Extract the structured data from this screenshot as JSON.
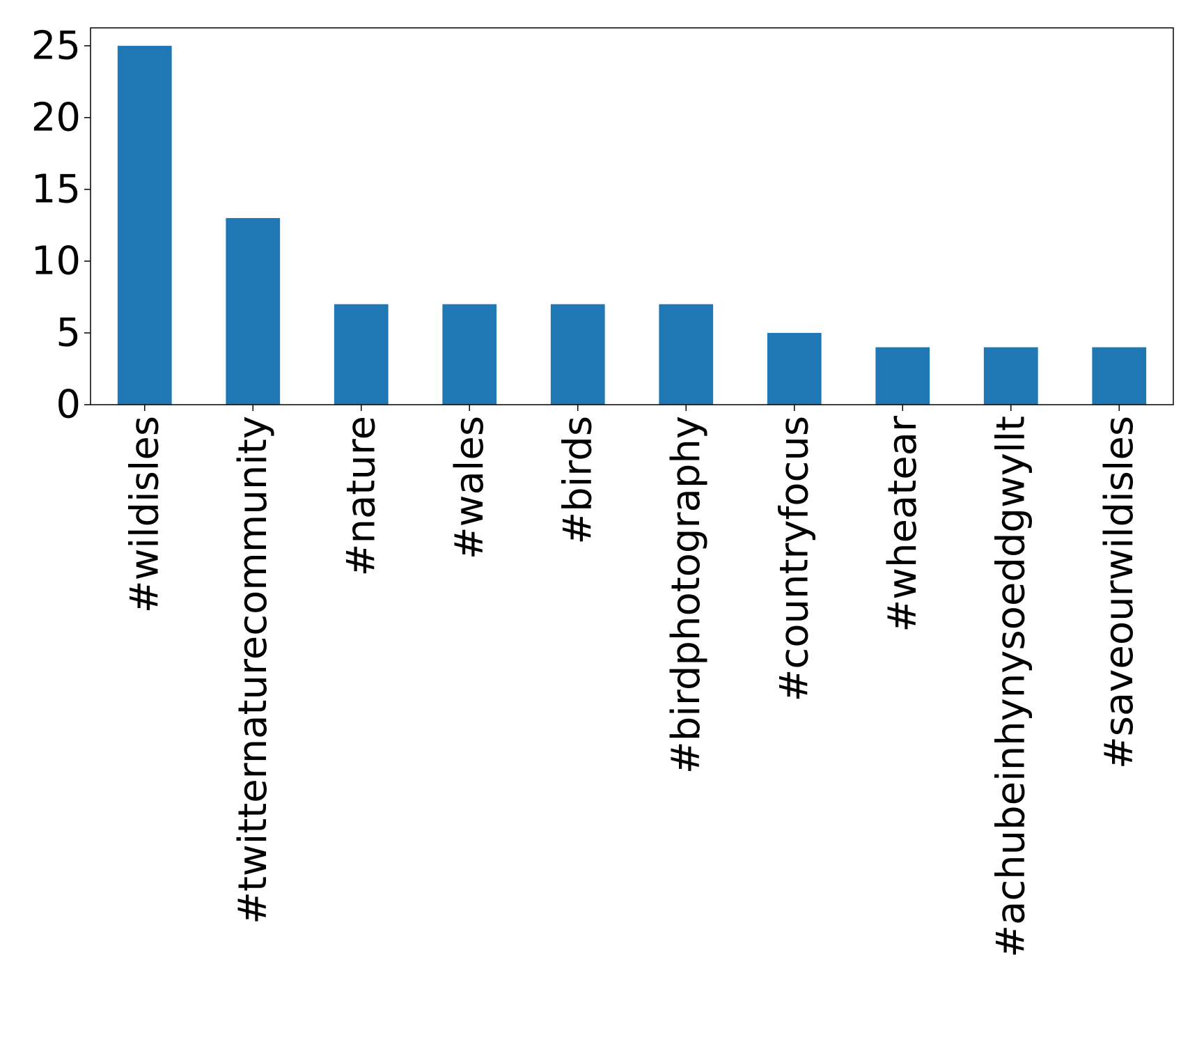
{
  "chart_data": {
    "type": "bar",
    "title": "",
    "xlabel": "",
    "ylabel": "",
    "categories": [
      "#wildisles",
      "#twitternaturecommunity",
      "#nature",
      "#wales",
      "#birds",
      "#birdphotography",
      "#countryfocus",
      "#wheatear",
      "#achubeinhynysoeddgwyllt",
      "#saveourwildisles"
    ],
    "values": [
      25,
      13,
      7,
      7,
      7,
      7,
      5,
      4,
      4,
      4
    ],
    "ylim": [
      0,
      26.25
    ],
    "yticks": [
      0,
      5,
      10,
      15,
      20,
      25
    ],
    "bar_color": "#1f77b4",
    "grid": false,
    "legend": "none",
    "x_tick_rotation": "vertical"
  }
}
